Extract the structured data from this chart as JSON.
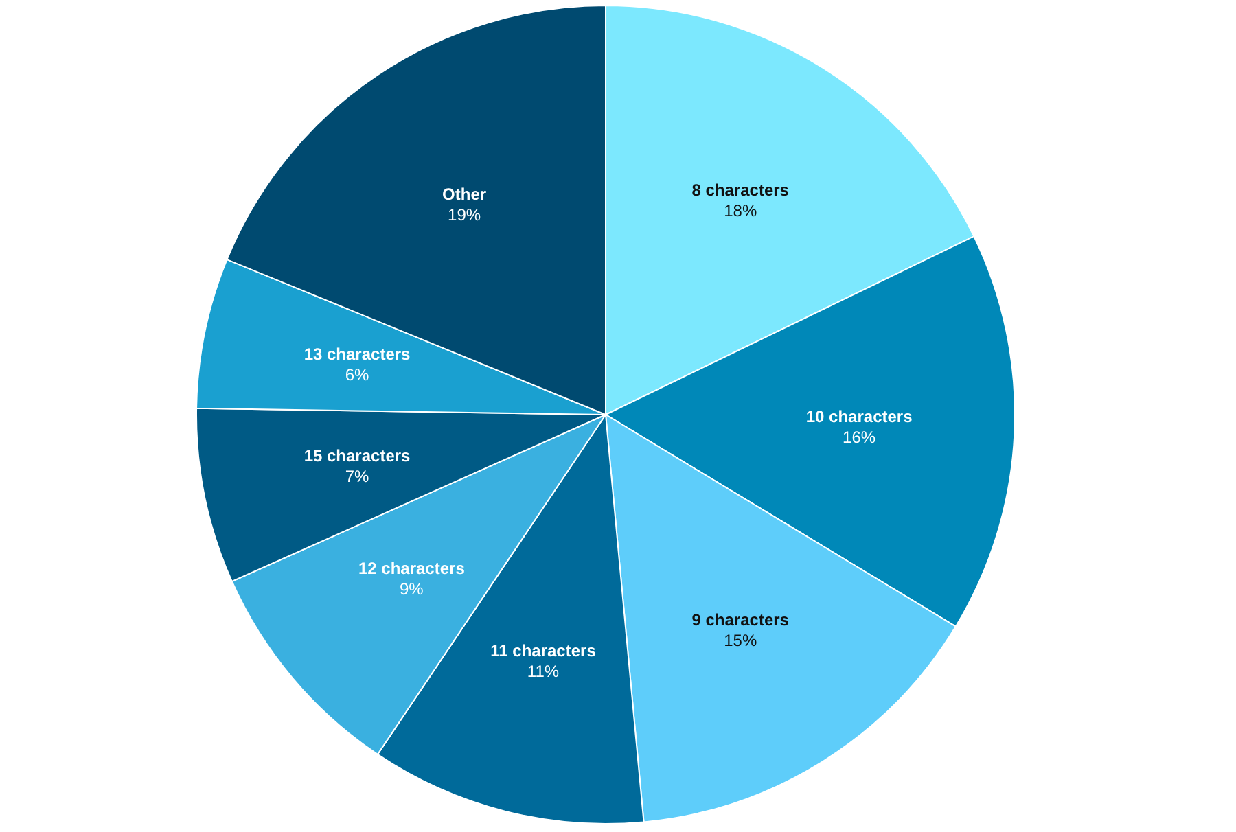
{
  "chart_data": {
    "type": "pie",
    "categories": [
      "8 characters",
      "10 characters",
      "9 characters",
      "11 characters",
      "12 characters",
      "15 characters",
      "13 characters",
      "Other"
    ],
    "values": [
      18,
      16,
      15,
      11,
      9,
      7,
      6,
      19
    ],
    "value_labels": [
      "18%",
      "16%",
      "15%",
      "11%",
      "9%",
      "7%",
      "6%",
      "19%"
    ],
    "colors": [
      "#7ce8fe",
      "#0088b8",
      "#5ecdfa",
      "#006a9a",
      "#3ab0e0",
      "#005a85",
      "#1aa0d0",
      "#004a70"
    ]
  }
}
